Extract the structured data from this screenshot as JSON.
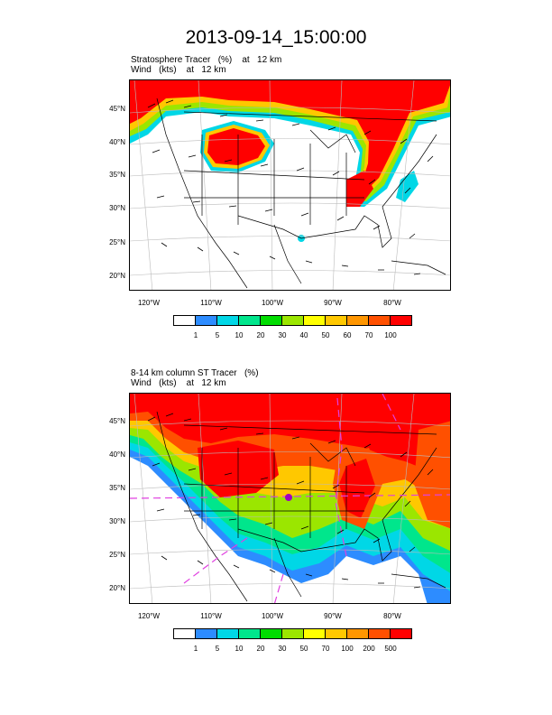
{
  "title": "2013-09-14_15:00:00",
  "panels": [
    {
      "subtitle_line1": "Stratosphere Tracer   (%)    at   12 km",
      "subtitle_line2": "Wind   (kts)    at   12 km",
      "lat_labels": [
        "45°N",
        "40°N",
        "35°N",
        "30°N",
        "25°N",
        "20°N"
      ],
      "lon_labels": [
        "120°W",
        "110°W",
        "100°W",
        "90°W",
        "80°W"
      ],
      "legend": {
        "labels": [
          "1",
          "5",
          "10",
          "20",
          "30",
          "40",
          "50",
          "60",
          "70",
          "100"
        ],
        "colors": [
          "#ffffff",
          "#2d8cff",
          "#00d7e6",
          "#00e68c",
          "#00dc00",
          "#9be600",
          "#ffff00",
          "#ffc800",
          "#ff9600",
          "#ff5000",
          "#ff0000"
        ]
      }
    },
    {
      "subtitle_line1": "8-14 km column ST Tracer   (%)",
      "subtitle_line2": "Wind   (kts)    at   12 km",
      "lat_labels": [
        "45°N",
        "40°N",
        "35°N",
        "30°N",
        "25°N",
        "20°N"
      ],
      "lon_labels": [
        "120°W",
        "110°W",
        "100°W",
        "90°W",
        "80°W"
      ],
      "legend": {
        "labels": [
          "1",
          "5",
          "10",
          "20",
          "30",
          "50",
          "70",
          "100",
          "200",
          "500"
        ],
        "colors": [
          "#ffffff",
          "#2d8cff",
          "#00d7e6",
          "#00e68c",
          "#00dc00",
          "#9be600",
          "#ffff00",
          "#ffc800",
          "#ff9600",
          "#ff5000",
          "#ff0000"
        ]
      }
    }
  ]
}
